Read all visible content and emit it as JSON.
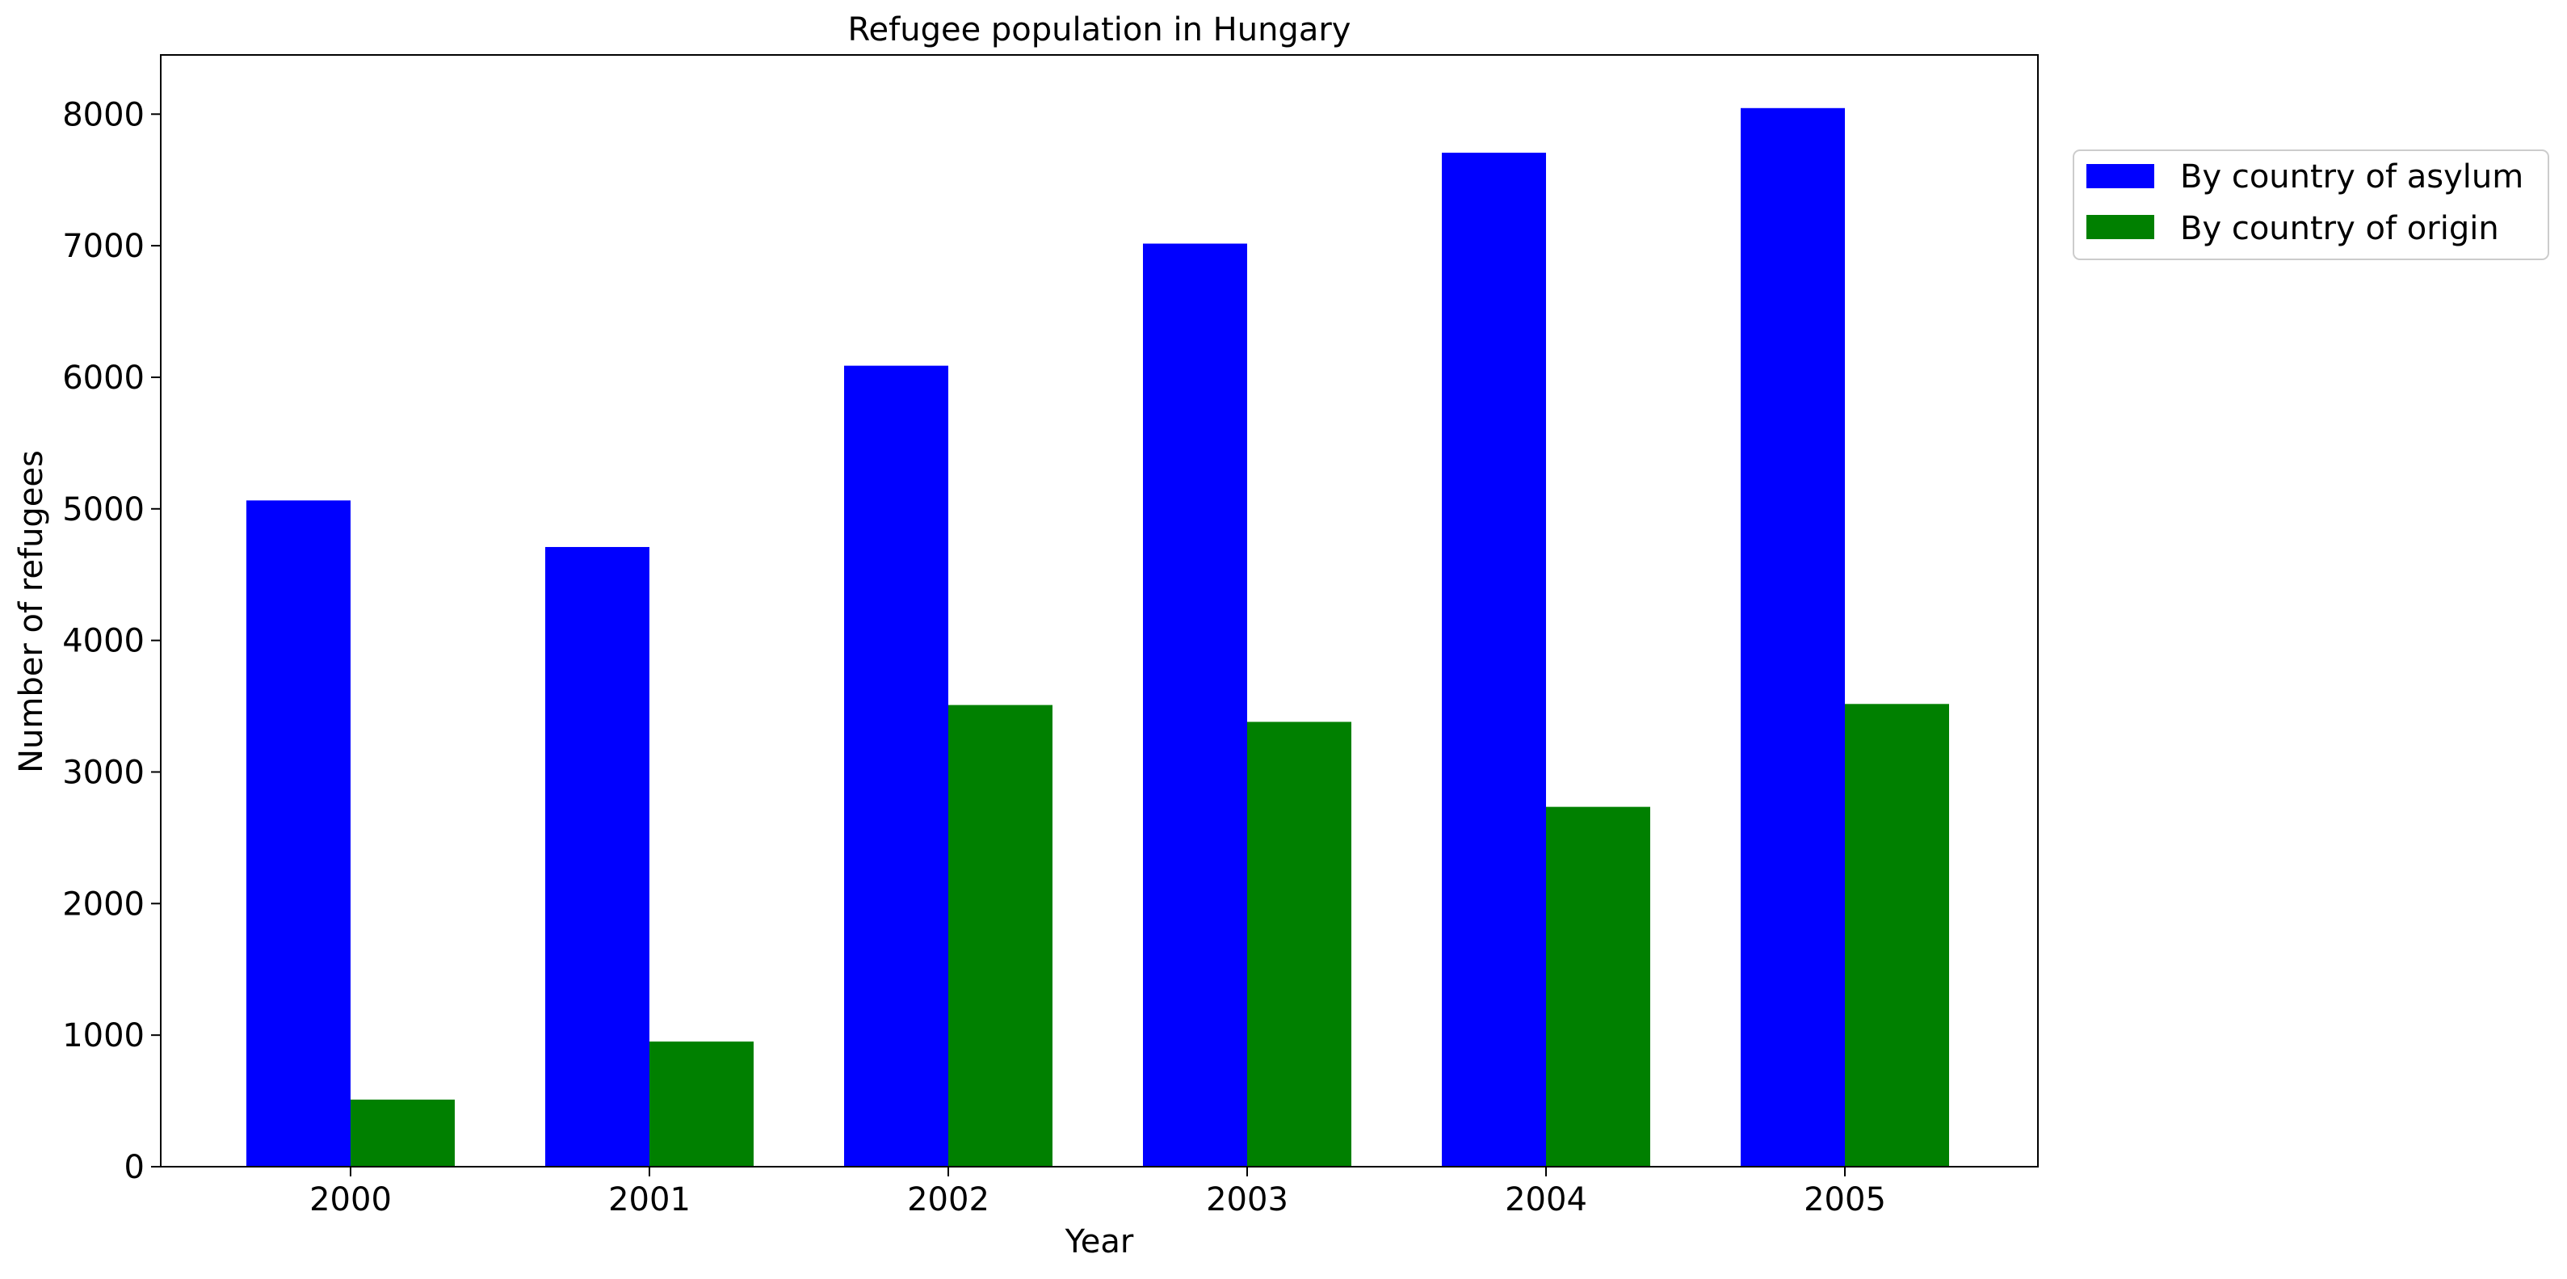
{
  "chart_data": {
    "type": "bar",
    "title": "Refugee population in Hungary",
    "xlabel": "Year",
    "ylabel": "Number of refugees",
    "categories": [
      "2000",
      "2001",
      "2002",
      "2003",
      "2004",
      "2005"
    ],
    "series": [
      {
        "name": "By country of asylum",
        "color": "#0000ff",
        "values": [
          5064,
          4710,
          6088,
          7016,
          7707,
          8046
        ]
      },
      {
        "name": "By country of origin",
        "color": "#008000",
        "values": [
          510,
          951,
          3509,
          3381,
          2735,
          3517
        ]
      }
    ],
    "ylim": [
      0,
      8450
    ],
    "yticks": [
      0,
      1000,
      2000,
      3000,
      4000,
      5000,
      6000,
      7000,
      8000
    ],
    "ytick_labels": [
      "0",
      "1000",
      "2000",
      "3000",
      "4000",
      "5000",
      "6000",
      "7000",
      "8000"
    ],
    "grid": false,
    "legend_position": "outside-right-top"
  }
}
